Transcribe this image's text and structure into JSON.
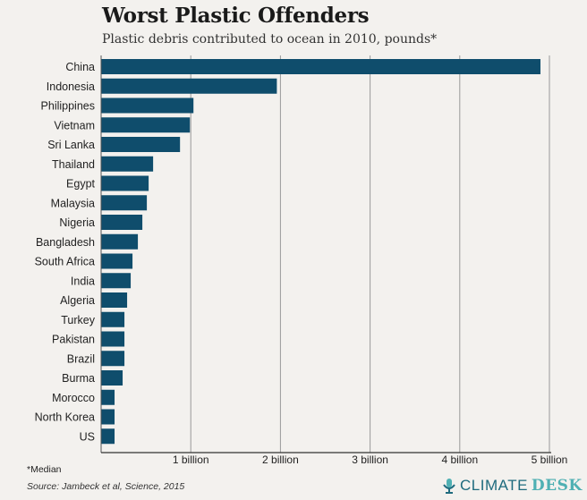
{
  "chart_data": {
    "type": "bar",
    "orientation": "horizontal",
    "title": "Worst Plastic Offenders",
    "subtitle": "Plastic debris contributed to ocean in 2010, pounds*",
    "categories": [
      "China",
      "Indonesia",
      "Philippines",
      "Vietnam",
      "Sri Lanka",
      "Thailand",
      "Egypt",
      "Malaysia",
      "Nigeria",
      "Bangladesh",
      "South Africa",
      "India",
      "Algeria",
      "Turkey",
      "Pakistan",
      "Brazil",
      "Burma",
      "Morocco",
      "North Korea",
      "US"
    ],
    "values": [
      4.9,
      1.96,
      1.03,
      0.99,
      0.88,
      0.58,
      0.53,
      0.51,
      0.46,
      0.41,
      0.35,
      0.33,
      0.29,
      0.26,
      0.26,
      0.26,
      0.24,
      0.15,
      0.15,
      0.15
    ],
    "unit": "billion pounds",
    "xlim": [
      0,
      5
    ],
    "xticks": [
      1,
      2,
      3,
      4,
      5
    ],
    "xtick_labels": [
      "1 billion",
      "2 billion",
      "3 billion",
      "4 billion",
      "5 billion"
    ],
    "grid": true,
    "bar_color": "#0f4d6c"
  },
  "footnote": "*Median",
  "source": "Source: Jambeck et al, Science, 2015",
  "logo": {
    "part1": "CLIMATE",
    "part2": "DESK"
  }
}
